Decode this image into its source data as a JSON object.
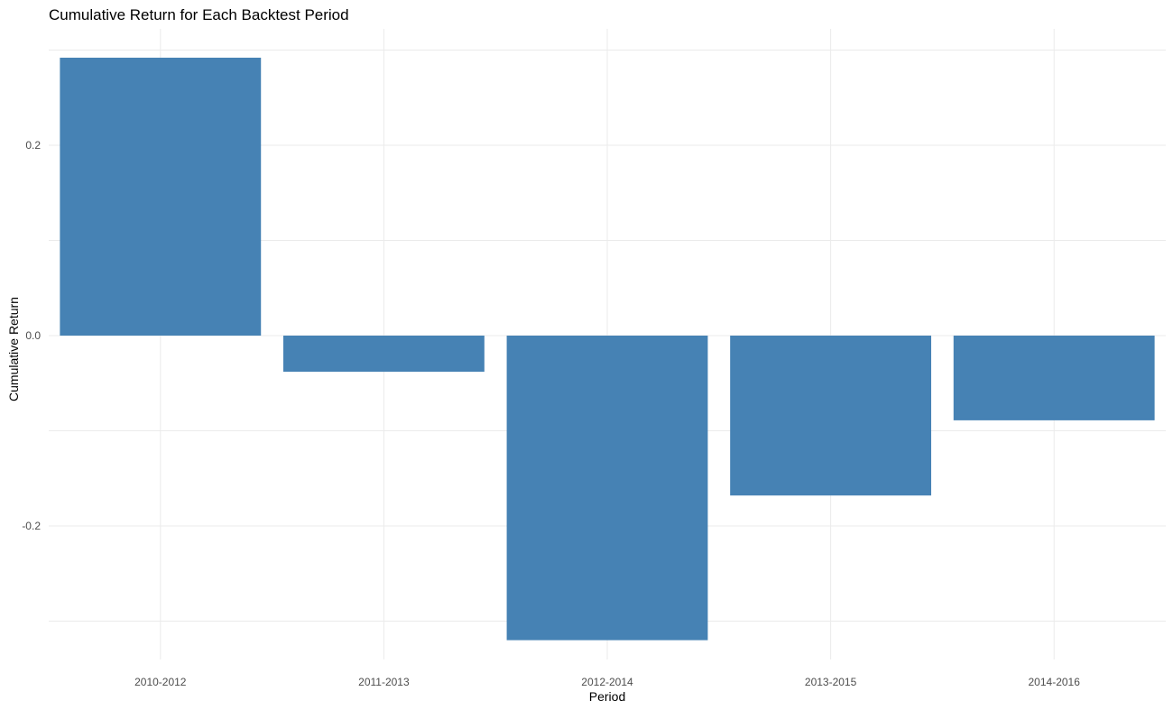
{
  "chart_data": {
    "type": "bar",
    "title": "Cumulative Return for Each Backtest Period",
    "xlabel": "Period",
    "ylabel": "Cumulative Return",
    "categories": [
      "2010-2012",
      "2011-2013",
      "2012-2014",
      "2013-2015",
      "2014-2016"
    ],
    "values": [
      0.292,
      -0.038,
      -0.32,
      -0.168,
      -0.089
    ],
    "ylim": [
      -0.34,
      0.31
    ],
    "yticks": [
      -0.2,
      0.0,
      0.2
    ],
    "ytick_labels": [
      "-0.2",
      "0.0",
      "0.2"
    ],
    "grid": true,
    "legend": "none",
    "bar_color": "#4682B4",
    "grid_color": "#EBEBEB"
  }
}
